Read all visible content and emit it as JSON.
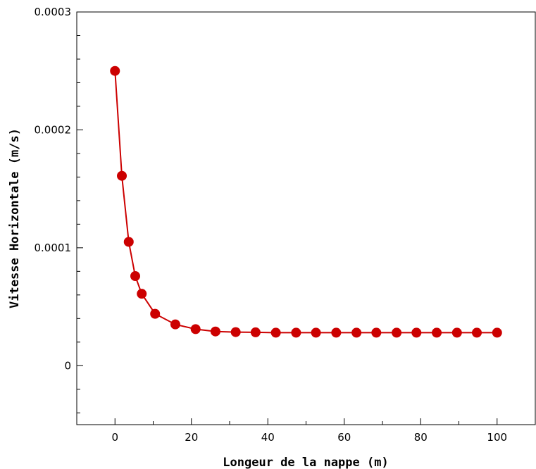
{
  "chart_data": {
    "type": "line",
    "title": "",
    "xlabel": "Longeur de la nappe (m)",
    "ylabel": "Vitesse Horizontale (m/s)",
    "xlim": [
      -10,
      110
    ],
    "ylim": [
      -5e-05,
      0.0003
    ],
    "x_ticks": [
      0,
      20,
      40,
      60,
      80,
      100
    ],
    "x_tick_labels": [
      "0",
      "20",
      "40",
      "60",
      "80",
      "100"
    ],
    "y_ticks": [
      0,
      0.0001,
      0.0002,
      0.0003
    ],
    "y_tick_labels": [
      "0",
      "0.0001",
      "0.0002",
      "0.0003"
    ],
    "grid": false,
    "legend": "none",
    "colors": {
      "series": "#cc0000",
      "axis": "#000000",
      "background": "#ffffff"
    },
    "series": [
      {
        "x": [
          0,
          1.8,
          3.6,
          5.3,
          7.0,
          10.5,
          15.8,
          21.1,
          26.3,
          31.6,
          36.8,
          42.1,
          47.4,
          52.6,
          57.9,
          63.2,
          68.4,
          73.7,
          78.9,
          84.2,
          89.5,
          94.7,
          100
        ],
        "y": [
          0.00025,
          0.000161,
          0.000105,
          7.6e-05,
          6.1e-05,
          4.4e-05,
          3.5e-05,
          3.1e-05,
          2.9e-05,
          2.85e-05,
          2.83e-05,
          2.8e-05,
          2.8e-05,
          2.8e-05,
          2.8e-05,
          2.8e-05,
          2.8e-05,
          2.8e-05,
          2.8e-05,
          2.8e-05,
          2.8e-05,
          2.8e-05,
          2.8e-05
        ]
      }
    ]
  }
}
